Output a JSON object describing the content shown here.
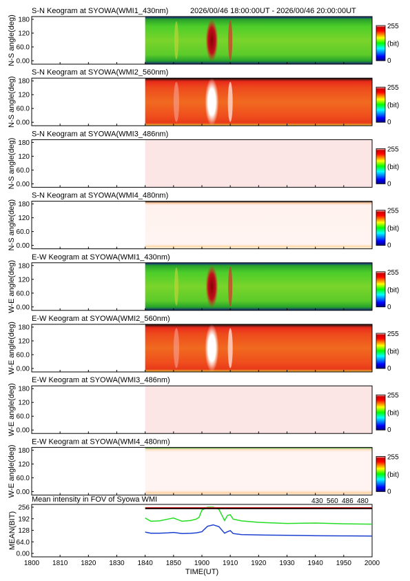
{
  "header": {
    "time_range": "2026/00/46 18:00:00UT - 2026/00/46 20:00:00UT"
  },
  "colorbar": {
    "max_label": "255",
    "unit_label": "(bit)",
    "min_label": "0"
  },
  "panels": [
    {
      "title": "S-N Keogram at SYOWA(WMI1_430nm)",
      "ylabel": "N-S angle(deg)",
      "yticks": [
        "180",
        "120",
        "60.0",
        "0.00"
      ],
      "scheme": "green430"
    },
    {
      "title": "S-N Keogram at SYOWA(WMI2_560nm)",
      "ylabel": "N-S angle(deg)",
      "yticks": [
        "180",
        "120",
        "60.0",
        "0.00"
      ],
      "scheme": "red560"
    },
    {
      "title": "S-N Keogram at SYOWA(WMI3_486nm)",
      "ylabel": "N-S angle(deg)",
      "yticks": [
        "180",
        "120",
        "60.0",
        "0.00"
      ],
      "scheme": "pink486"
    },
    {
      "title": "S-N Keogram at SYOWA(WMI4_480nm)",
      "ylabel": "N-S angle(deg)",
      "yticks": [
        "180",
        "120",
        "60.0",
        "0.00"
      ],
      "scheme": "white480"
    },
    {
      "title": "E-W Keogram at SYOWA(WMI1_430nm)",
      "ylabel": "W-E angle(deg)",
      "yticks": [
        "180",
        "120",
        "60.0",
        "0.00"
      ],
      "scheme": "green430"
    },
    {
      "title": "E-W Keogram at SYOWA(WMI2_560nm)",
      "ylabel": "W-E angle(deg)",
      "yticks": [
        "180",
        "120",
        "60.0",
        "0.00"
      ],
      "scheme": "red560"
    },
    {
      "title": "E-W Keogram at SYOWA(WMI3_486nm)",
      "ylabel": "W-E angle(deg)",
      "yticks": [
        "180",
        "120",
        "60.0",
        "0.00"
      ],
      "scheme": "pink486"
    },
    {
      "title": "E-W Keogram at SYOWA(WMI4_480nm)",
      "ylabel": "W-E angle(deg)",
      "yticks": [
        "180",
        "120",
        "60.0",
        "0.00"
      ],
      "scheme": "white480e"
    }
  ],
  "chart_data": {
    "type": "line",
    "title": "Mean intensity in FOV of Syowa WMI",
    "xlabel": "TIME(UT)",
    "ylabel": "MEAN(BIT)",
    "x_ticks": [
      "1800",
      "1810",
      "1820",
      "1830",
      "1840",
      "1850",
      "1900",
      "1910",
      "1920",
      "1930",
      "1940",
      "1950",
      "2000"
    ],
    "y_ticks": [
      "256",
      "192",
      "128",
      "64.0",
      "0.00"
    ],
    "ylim": [
      0,
      256
    ],
    "xlim_minutes": [
      0,
      120
    ],
    "data_start_minute": 40,
    "legend": [
      {
        "name": "430",
        "color": "#1a1aa6"
      },
      {
        "name": "560",
        "color": "#22cc22"
      },
      {
        "name": "486",
        "color": "#cc2222"
      },
      {
        "name": "480",
        "color": "#000000"
      }
    ],
    "series": [
      {
        "name": "430",
        "color": "#1a3fd0",
        "points": [
          [
            40,
            118
          ],
          [
            42,
            112
          ],
          [
            45,
            112
          ],
          [
            48,
            114
          ],
          [
            50,
            116
          ],
          [
            53,
            110
          ],
          [
            56,
            111
          ],
          [
            58,
            114
          ],
          [
            60,
            120
          ],
          [
            62,
            150
          ],
          [
            64,
            158
          ],
          [
            66,
            148
          ],
          [
            68,
            112
          ],
          [
            69,
            120
          ],
          [
            70,
            126
          ],
          [
            71,
            110
          ],
          [
            74,
            104
          ],
          [
            80,
            102
          ],
          [
            90,
            100
          ],
          [
            100,
            98
          ],
          [
            110,
            97
          ],
          [
            120,
            96
          ]
        ]
      },
      {
        "name": "560",
        "color": "#22dd22",
        "points": [
          [
            40,
            196
          ],
          [
            42,
            178
          ],
          [
            45,
            180
          ],
          [
            48,
            190
          ],
          [
            50,
            196
          ],
          [
            53,
            178
          ],
          [
            56,
            182
          ],
          [
            58,
            190
          ],
          [
            59,
            200
          ],
          [
            60,
            240
          ],
          [
            62,
            256
          ],
          [
            64,
            256
          ],
          [
            66,
            244
          ],
          [
            68,
            182
          ],
          [
            69,
            210
          ],
          [
            70,
            214
          ],
          [
            71,
            190
          ],
          [
            74,
            180
          ],
          [
            80,
            172
          ],
          [
            90,
            166
          ],
          [
            100,
            168
          ],
          [
            110,
            164
          ],
          [
            120,
            162
          ]
        ]
      },
      {
        "name": "486",
        "color": "#cc2222",
        "points": [
          [
            40,
            253
          ],
          [
            120,
            253
          ]
        ]
      },
      {
        "name": "480",
        "color": "#000000",
        "points": [
          [
            40,
            248
          ],
          [
            120,
            248
          ]
        ]
      }
    ]
  }
}
